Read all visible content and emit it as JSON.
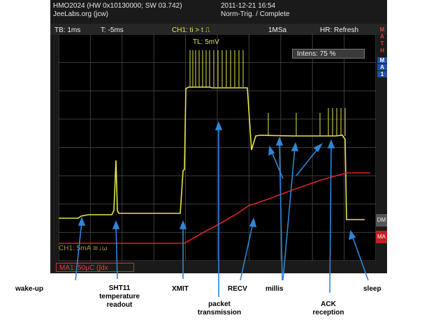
{
  "header": {
    "model": "HMO2024 (HW 0x10130000; SW 03.742)",
    "owner": "JeeLabs.org (jcw)",
    "datetime": "2011-12-21 16:54",
    "trigger_status": "Norm-Trig. / Complete"
  },
  "status_bar": {
    "timebase": "TB: 1ms",
    "trigger_time": "T: -5ms",
    "trigger_cond": "CH1: ti > t ⎍",
    "sample_rate": "1MSa",
    "hr": "HR: Refresh"
  },
  "side_menu": {
    "math_letters": [
      "M",
      "A",
      "T",
      "H"
    ],
    "ma_letters": [
      "M",
      "A",
      "1"
    ],
    "dm": "DM",
    "ma": "MA"
  },
  "overlay": {
    "tl": "TL: 5mV",
    "intensity": "Intens: 75 %",
    "ch1_scale": "CH1: 5mA ≅↓ω",
    "ma1_scale": "MA1: 50µC (∫dx"
  },
  "annotations": [
    {
      "label": "wake-up"
    },
    {
      "label": "SHT11\ntemperature\nreadout"
    },
    {
      "label": "XMIT"
    },
    {
      "label": "packet\ntransmission"
    },
    {
      "label": "RECV"
    },
    {
      "label": "millis"
    },
    {
      "label": "ACK\nreception"
    },
    {
      "label": "sleep"
    }
  ],
  "colors": {
    "trace_yellow": "#e6e64a",
    "trace_red": "#e02020",
    "arrow_blue": "#2f86d8",
    "grid": "#3a3a3a"
  }
}
